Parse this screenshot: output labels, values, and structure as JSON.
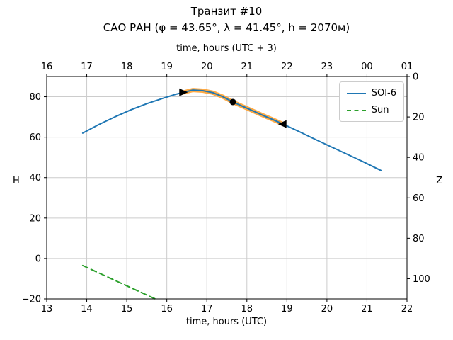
{
  "chart_data": {
    "type": "line",
    "title": "Транзит #10",
    "subtitle": "САО РАН (φ = 43.65°, λ = 41.45°, h = 2070м)",
    "xlabel_bottom": "time, hours (UTC)",
    "xlabel_top": "time, hours (UTC + 3)",
    "ylabel_left": "H",
    "ylabel_right": "Z",
    "xlim": [
      13,
      22
    ],
    "ylim": [
      -20,
      90
    ],
    "grid": true,
    "colors": {
      "grid": "#cccccc",
      "spine": "#000000",
      "marker": "#000000"
    },
    "x_ticks_bottom": {
      "values": [
        13,
        14,
        15,
        16,
        17,
        18,
        19,
        20,
        21,
        22
      ],
      "labels": [
        "13",
        "14",
        "15",
        "16",
        "17",
        "18",
        "19",
        "20",
        "21",
        "22"
      ]
    },
    "x_ticks_top": {
      "values": [
        13,
        14,
        15,
        16,
        17,
        18,
        19,
        20,
        21,
        22
      ],
      "labels": [
        "16",
        "17",
        "18",
        "19",
        "20",
        "21",
        "22",
        "23",
        "00",
        "01"
      ]
    },
    "y_ticks_left": {
      "values": [
        -20,
        0,
        20,
        40,
        60,
        80
      ],
      "labels": [
        "−20",
        "0",
        "20",
        "40",
        "60",
        "80"
      ]
    },
    "y_ticks_right": {
      "values": [
        90,
        70,
        50,
        30,
        10,
        -10
      ],
      "labels": [
        "0",
        "20",
        "40",
        "60",
        "80",
        "100"
      ]
    },
    "series": [
      {
        "name": "transit-highlight",
        "color": "#ffaa44",
        "width": 6,
        "dash": false,
        "x": [
          16.4,
          16.65,
          16.9,
          17.15,
          17.4,
          17.65,
          17.9,
          18.15,
          18.4,
          18.65,
          18.9
        ],
        "y": [
          82.1,
          83.3,
          83.0,
          82.0,
          80.0,
          77.4,
          75.2,
          73.0,
          70.8,
          68.7,
          66.5
        ]
      },
      {
        "name": "SOI-6",
        "color": "#1f77b4",
        "width": 2,
        "dash": false,
        "x": [
          13.9,
          14.3,
          14.7,
          15.1,
          15.5,
          15.9,
          16.2,
          16.4,
          16.65,
          16.9,
          17.15,
          17.4,
          17.65,
          17.9,
          18.15,
          18.4,
          18.65,
          18.9,
          19.3,
          19.7,
          20.1,
          20.5,
          20.9,
          21.35
        ],
        "y": [
          62.0,
          66.2,
          70.0,
          73.5,
          76.6,
          79.2,
          81.1,
          82.1,
          83.3,
          83.0,
          82.0,
          80.0,
          77.4,
          75.2,
          73.0,
          70.8,
          68.7,
          66.5,
          62.8,
          59.0,
          55.3,
          51.6,
          47.9,
          43.5
        ]
      },
      {
        "name": "Sun",
        "color": "#2ca02c",
        "width": 2,
        "dash": true,
        "x": [
          13.9,
          15.71
        ],
        "y": [
          -3.5,
          -20.0
        ]
      }
    ],
    "markers": [
      {
        "shape": "triangle-right",
        "x": 16.4,
        "y": 82.2
      },
      {
        "shape": "circle",
        "x": 17.65,
        "y": 77.4
      },
      {
        "shape": "triangle-left",
        "x": 18.9,
        "y": 66.5
      }
    ],
    "legend": {
      "position": "upper right",
      "entries": [
        {
          "label": "SOI-6",
          "color": "#1f77b4",
          "dash": false
        },
        {
          "label": "Sun",
          "color": "#2ca02c",
          "dash": true
        }
      ]
    }
  }
}
